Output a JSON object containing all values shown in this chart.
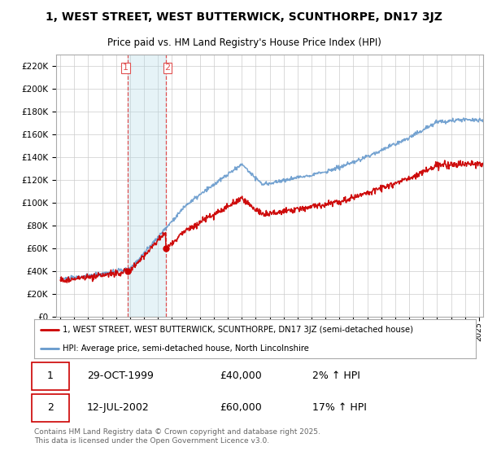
{
  "title": "1, WEST STREET, WEST BUTTERWICK, SCUNTHORPE, DN17 3JZ",
  "subtitle": "Price paid vs. HM Land Registry's House Price Index (HPI)",
  "legend_label_red": "1, WEST STREET, WEST BUTTERWICK, SCUNTHORPE, DN17 3JZ (semi-detached house)",
  "legend_label_blue": "HPI: Average price, semi-detached house, North Lincolnshire",
  "footer": "Contains HM Land Registry data © Crown copyright and database right 2025.\nThis data is licensed under the Open Government Licence v3.0.",
  "transactions": [
    {
      "label": "1",
      "date": "29-OCT-1999",
      "price": 40000,
      "hpi_pct": "2% ↑ HPI",
      "x": 1999.83
    },
    {
      "label": "2",
      "date": "12-JUL-2002",
      "price": 60000,
      "hpi_pct": "17% ↑ HPI",
      "x": 2002.54
    }
  ],
  "vline_color": "#e05050",
  "vline_style": "--",
  "transaction_dot_color": "#cc0000",
  "shade_color": "#add8e6",
  "shade_alpha": 0.3,
  "red_line_color": "#cc0000",
  "blue_line_color": "#6699cc",
  "grid_color": "#cccccc",
  "bg_color": "#ffffff",
  "ylim": [
    0,
    230000
  ],
  "ytick_step": 20000,
  "year_start": 1995,
  "year_end": 2025,
  "title_fontsize": 10,
  "subtitle_fontsize": 8.5
}
